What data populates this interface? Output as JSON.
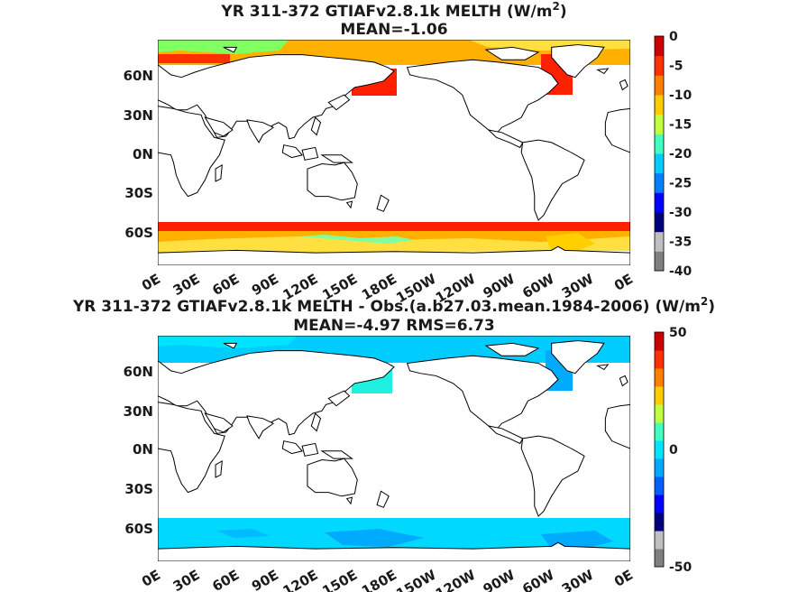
{
  "panels": [
    {
      "title_main": "YR 311-372 GTIAFv2.8.1k  MELTH (W/m",
      "title_sup": "2",
      "title_close": ")",
      "subtitle": "MEAN=-1.06",
      "lat_ticks": [
        "60N",
        "30N",
        "0N",
        "30S",
        "60S"
      ],
      "lon_ticks": [
        "0E",
        "30E",
        "60E",
        "90E",
        "120E",
        "150E",
        "180E",
        "150W",
        "120W",
        "90W",
        "60W",
        "30W",
        "0E"
      ],
      "colorbar": {
        "range": [
          -40,
          0
        ],
        "ticks": [
          "0",
          "-5",
          "-10",
          "-15",
          "-20",
          "-25",
          "-30",
          "-35",
          "-40"
        ],
        "colors": [
          "#7f7f7f",
          "#bfbfbf",
          "#00007f",
          "#0000ff",
          "#0080ff",
          "#00ccff",
          "#40ffbf",
          "#bfff40",
          "#ffcc00",
          "#ff8000",
          "#ff3000",
          "#cc0000"
        ]
      }
    },
    {
      "title_main": "YR 311-372 GTIAFv2.8.1k MELTH - Obs.(a.b27.03.mean.1984-2006) (W/m",
      "title_sup": "2",
      "title_close": ")",
      "subtitle": "MEAN=-4.97 RMS=6.73",
      "lat_ticks": [
        "60N",
        "30N",
        "0N",
        "30S",
        "60S"
      ],
      "lon_ticks": [
        "0E",
        "30E",
        "60E",
        "90E",
        "120E",
        "150E",
        "180E",
        "150W",
        "120W",
        "90W",
        "60W",
        "30W",
        "0E"
      ],
      "colorbar": {
        "range": [
          -50,
          50
        ],
        "ticks": [
          "50",
          "0",
          "-50"
        ],
        "colors": [
          "#7f7f7f",
          "#bfbfbf",
          "#00007f",
          "#0000ff",
          "#0060ff",
          "#00aaff",
          "#00e5ff",
          "#40ffbf",
          "#bfff40",
          "#ffcc00",
          "#ff8000",
          "#ff3000",
          "#cc0000"
        ]
      }
    }
  ]
}
